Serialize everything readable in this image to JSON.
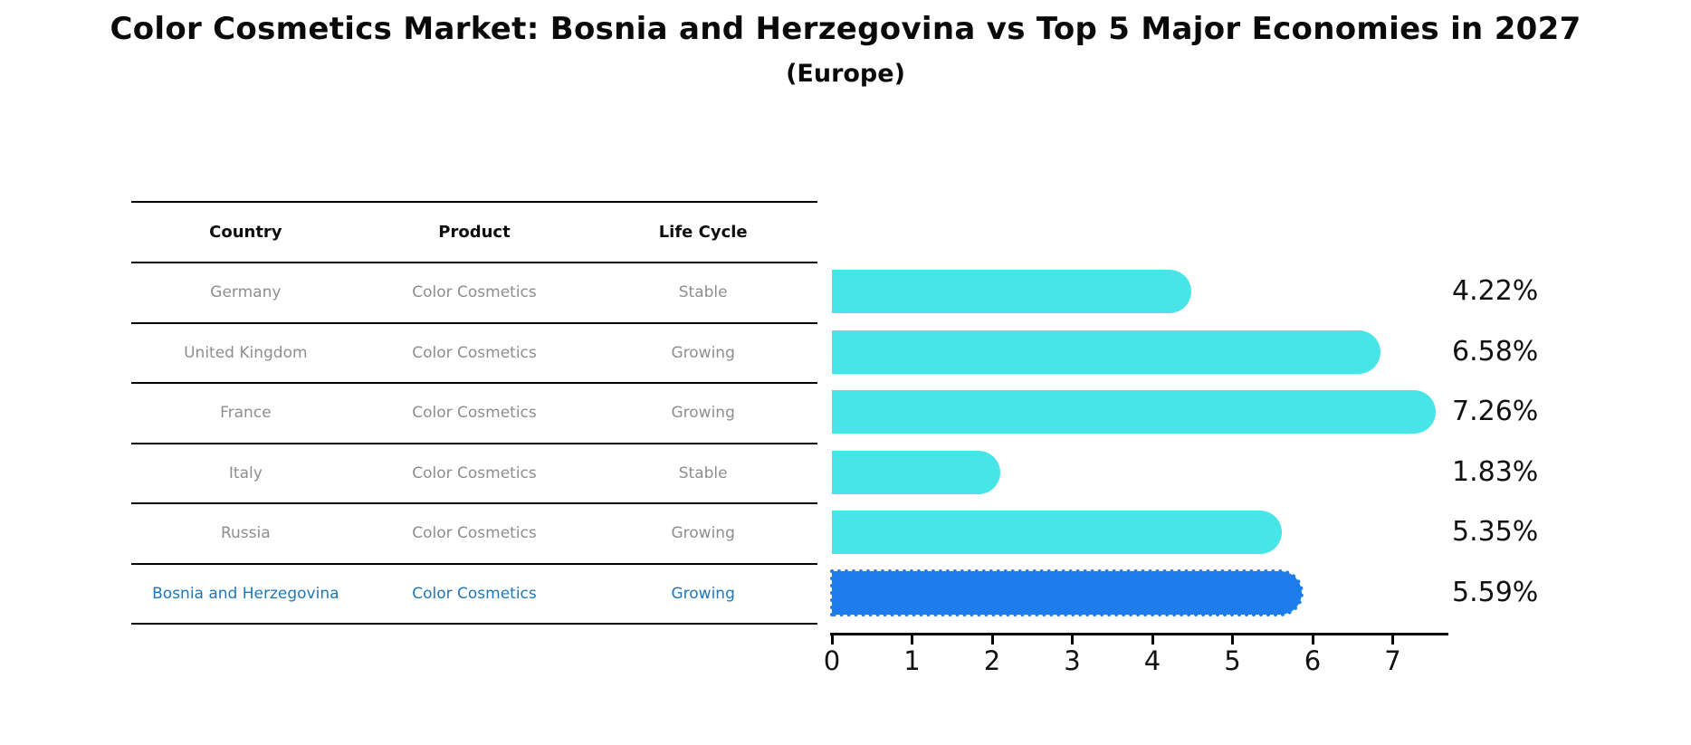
{
  "title": "Color Cosmetics Market: Bosnia and Herzegovina vs Top 5 Major Economies in 2027",
  "subtitle": "(Europe)",
  "table": {
    "headers": [
      "Country",
      "Product",
      "Life Cycle"
    ],
    "rows": [
      {
        "country": "Germany",
        "product": "Color Cosmetics",
        "life_cycle": "Stable",
        "highlighted": false
      },
      {
        "country": "United Kingdom",
        "product": "Color Cosmetics",
        "life_cycle": "Growing",
        "highlighted": false
      },
      {
        "country": "France",
        "product": "Color Cosmetics",
        "life_cycle": "Growing",
        "highlighted": false
      },
      {
        "country": "Italy",
        "product": "Color Cosmetics",
        "life_cycle": "Stable",
        "highlighted": false
      },
      {
        "country": "Russia",
        "product": "Color Cosmetics",
        "life_cycle": "Growing",
        "highlighted": false
      },
      {
        "country": "Bosnia and Herzegovina",
        "product": "Color Cosmetics",
        "life_cycle": "Growing",
        "highlighted": true
      }
    ]
  },
  "chart_data": {
    "type": "bar",
    "orientation": "horizontal",
    "title": "Color Cosmetics Market: Bosnia and Herzegovina vs Top 5 Major Economies in 2027 (Europe)",
    "categories": [
      "Germany",
      "United Kingdom",
      "France",
      "Italy",
      "Russia",
      "Bosnia and Herzegovina"
    ],
    "values": [
      4.22,
      6.58,
      7.26,
      1.83,
      5.35,
      5.59
    ],
    "value_labels": [
      "4.22%",
      "6.58%",
      "7.26%",
      "1.83%",
      "5.35%",
      "5.59%"
    ],
    "highlight_index": 5,
    "xlabel": "",
    "ylabel": "",
    "xlim": [
      0,
      7.7
    ],
    "x_ticks": [
      "0",
      "1",
      "2",
      "3",
      "4",
      "5",
      "6",
      "7"
    ],
    "grid": false,
    "legend": false
  },
  "colors": {
    "bar": "#47E4E8",
    "highlight_bar": "#1E7DEB",
    "highlight_text": "#1F77B4",
    "row_text": "#8E8E8E",
    "header_text": "#0D0D0D",
    "axis": "#000000"
  }
}
